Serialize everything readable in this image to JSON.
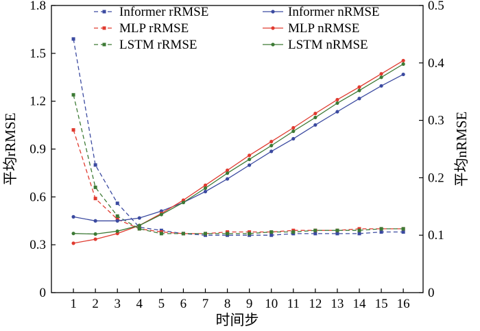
{
  "chart_data": {
    "type": "line",
    "xlabel": "时间步",
    "ylabel_left": "平均rRMSE",
    "ylabel_right": "平均nRMSE",
    "x": [
      1,
      2,
      3,
      4,
      5,
      6,
      7,
      8,
      9,
      10,
      11,
      12,
      13,
      14,
      15,
      16
    ],
    "x_ticks": [
      "1",
      "2",
      "3",
      "4",
      "5",
      "6",
      "7",
      "8",
      "9",
      "10",
      "11",
      "12",
      "13",
      "14",
      "15",
      "16"
    ],
    "y_left_ticks": [
      "0",
      "0.3",
      "0.6",
      "0.9",
      "1.2",
      "1.5",
      "1.8"
    ],
    "y_right_ticks": [
      "0",
      "0.1",
      "0.2",
      "0.3",
      "0.4",
      "0.5"
    ],
    "ylim_left": [
      0,
      1.8
    ],
    "ylim_right": [
      0,
      0.5
    ],
    "xlim": [
      0,
      16.9
    ],
    "legend_position": "top",
    "series": [
      {
        "name": "Informer rRMSE",
        "axis": "left",
        "style": "dashed",
        "marker": "square",
        "color": "#3b4aa0",
        "values": [
          1.59,
          0.8,
          0.56,
          0.41,
          0.39,
          0.37,
          0.36,
          0.36,
          0.36,
          0.36,
          0.37,
          0.37,
          0.37,
          0.37,
          0.38,
          0.38
        ]
      },
      {
        "name": "MLP rRMSE",
        "axis": "left",
        "style": "dashed",
        "marker": "square",
        "color": "#e03a2f",
        "values": [
          1.02,
          0.59,
          0.46,
          0.4,
          0.38,
          0.37,
          0.37,
          0.38,
          0.38,
          0.38,
          0.39,
          0.39,
          0.39,
          0.4,
          0.4,
          0.4
        ]
      },
      {
        "name": "LSTM rRMSE",
        "axis": "left",
        "style": "dashed",
        "marker": "square",
        "color": "#3d7a35",
        "values": [
          1.24,
          0.66,
          0.48,
          0.4,
          0.37,
          0.37,
          0.37,
          0.37,
          0.37,
          0.38,
          0.38,
          0.39,
          0.39,
          0.39,
          0.4,
          0.4
        ]
      },
      {
        "name": "Informer nRMSE",
        "axis": "right",
        "style": "solid",
        "marker": "circle",
        "color": "#3b4aa0",
        "values": [
          0.132,
          0.125,
          0.125,
          0.13,
          0.142,
          0.157,
          0.176,
          0.198,
          0.222,
          0.246,
          0.268,
          0.292,
          0.315,
          0.338,
          0.36,
          0.38
        ]
      },
      {
        "name": "MLP nRMSE",
        "axis": "right",
        "style": "solid",
        "marker": "circle",
        "color": "#e03a2f",
        "values": [
          0.086,
          0.093,
          0.103,
          0.117,
          0.138,
          0.161,
          0.187,
          0.213,
          0.239,
          0.263,
          0.287,
          0.312,
          0.336,
          0.358,
          0.381,
          0.404
        ]
      },
      {
        "name": "LSTM nRMSE",
        "axis": "right",
        "style": "solid",
        "marker": "circle",
        "color": "#3d7a35",
        "values": [
          0.103,
          0.102,
          0.107,
          0.117,
          0.136,
          0.157,
          0.182,
          0.208,
          0.232,
          0.256,
          0.281,
          0.305,
          0.33,
          0.352,
          0.375,
          0.398
        ]
      }
    ]
  }
}
